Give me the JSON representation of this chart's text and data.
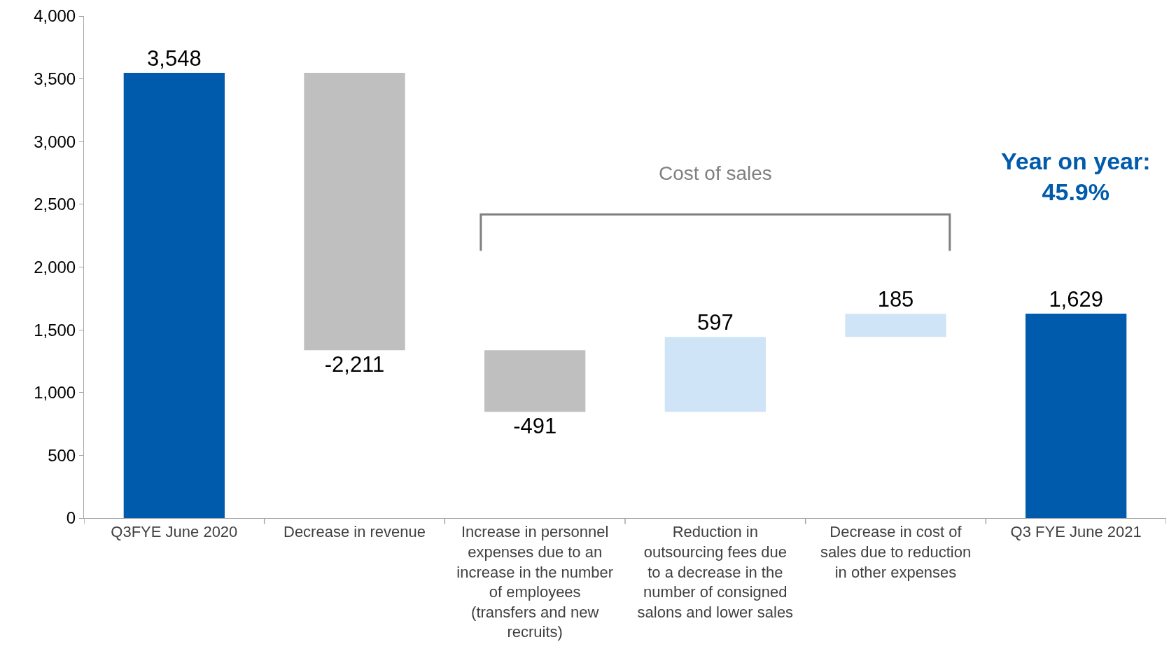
{
  "chart_data": {
    "type": "bar",
    "categories": [
      "Q3FYE June 2020",
      "Decrease in revenue",
      "Increase in personnel expenses due to an increase in the number of employees (transfers and new recruits)",
      "Reduction in outsourcing fees due to a decrease in the number of consigned salons and lower sales",
      "Decrease in cost of sales due to reduction in other expenses",
      "Q3 FYE June 2021"
    ],
    "values": [
      3548,
      -2211,
      -491,
      597,
      185,
      1629
    ],
    "base": [
      0,
      3548,
      1337,
      846,
      1443,
      0
    ],
    "colors": [
      "#005bac",
      "#bfbfbf",
      "#bfbfbf",
      "#cfe4f7",
      "#cfe4f7",
      "#005bac"
    ],
    "value_labels": [
      "3,548",
      "-2,211",
      "-491",
      "597",
      "185",
      "1,629"
    ],
    "annotations": [
      "Cost of sales",
      "Year on year:\n45.9%"
    ],
    "ylim": [
      0,
      4000
    ],
    "yticks": [
      {
        "value": 0,
        "label": "0"
      },
      {
        "value": 500,
        "label": "500"
      },
      {
        "value": 1000,
        "label": "1,000"
      },
      {
        "value": 1500,
        "label": "1,500"
      },
      {
        "value": 2000,
        "label": "2,000"
      },
      {
        "value": 2500,
        "label": "2,500"
      },
      {
        "value": 3000,
        "label": "3,000"
      },
      {
        "value": 3500,
        "label": "3,500"
      },
      {
        "value": 4000,
        "label": "4,000"
      }
    ],
    "grid": false
  }
}
